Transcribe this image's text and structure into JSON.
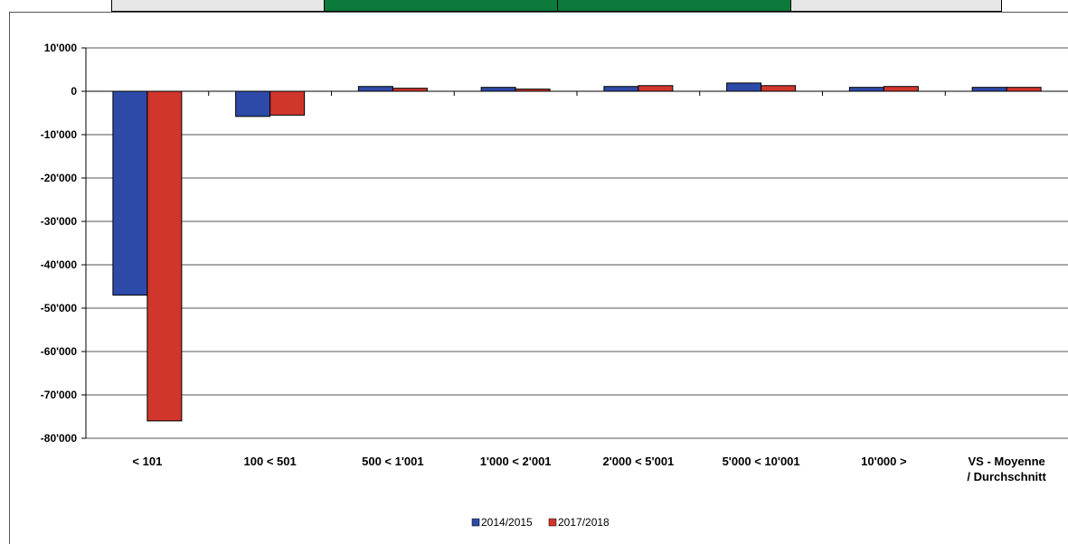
{
  "header_cells": [
    {
      "color": "#e6e6e6"
    },
    {
      "color": "#0b7a3b"
    },
    {
      "color": "#0b7a3b"
    },
    {
      "color": "#e6e6e6"
    }
  ],
  "chart_data": {
    "type": "bar",
    "categories": [
      "< 101",
      "100 < 501",
      "500 < 1'001",
      "1'000 < 2'001",
      "2'000 < 5'001",
      "5'000 < 10'001",
      "10'000 >",
      "VS - Moyenne / Durchschnitt"
    ],
    "series": [
      {
        "name": "2014/2015",
        "color": "#2e4aa8",
        "values": [
          -47000,
          -5800,
          1100,
          900,
          1100,
          1900,
          900,
          900
        ]
      },
      {
        "name": "2017/2018",
        "color": "#d0362b",
        "values": [
          -76000,
          -5500,
          700,
          500,
          1300,
          1300,
          1100,
          900
        ]
      }
    ],
    "yticks": [
      "10'000",
      "0",
      "-10'000",
      "-20'000",
      "-30'000",
      "-40'000",
      "-50'000",
      "-60'000",
      "-70'000",
      "-80'000"
    ],
    "ytick_values": [
      10000,
      0,
      -10000,
      -20000,
      -30000,
      -40000,
      -50000,
      -60000,
      -70000,
      -80000
    ],
    "ylim": [
      -80000,
      10000
    ],
    "grid": true,
    "legend_position": "bottom-center",
    "title": "",
    "xlabel": "",
    "ylabel": ""
  }
}
